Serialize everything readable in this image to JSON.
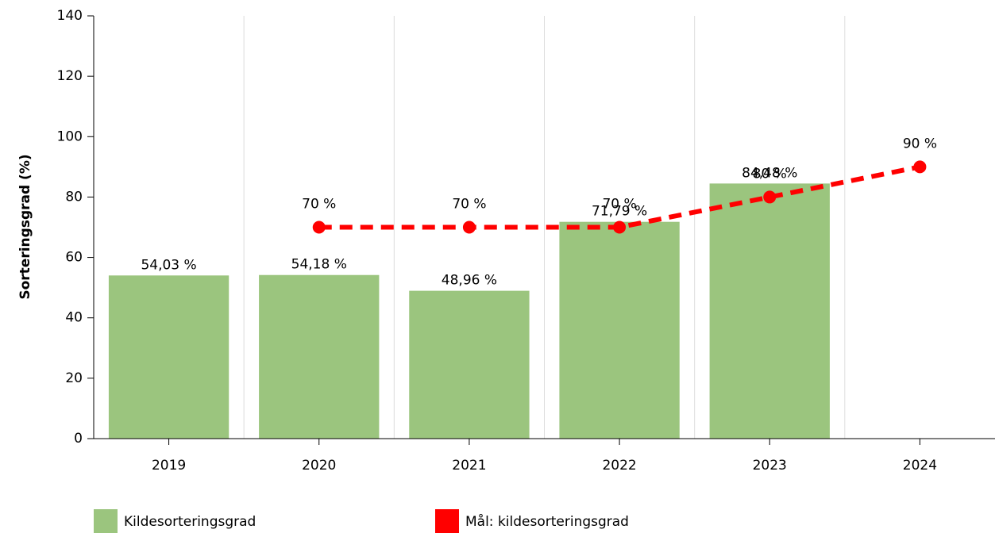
{
  "chart_data": {
    "type": "bar_line",
    "y_label": "Sorteringsgrad (%)",
    "categories": [
      "2019",
      "2020",
      "2021",
      "2022",
      "2023",
      "2024"
    ],
    "series": [
      {
        "name": "Kildesorteringsgrad",
        "type": "bar",
        "color": "#9bc57e",
        "values": [
          54.03,
          54.18,
          48.96,
          71.79,
          84.48,
          null
        ],
        "value_labels": [
          "54,03 %",
          "54,18 %",
          "48,96 %",
          "71,79 %",
          "84,48 %",
          null
        ]
      },
      {
        "name": "Mål: kildesorteringsgrad",
        "type": "line",
        "color": "#ff0000",
        "values": [
          null,
          70,
          70,
          70,
          80,
          90
        ],
        "value_labels": [
          null,
          "70 %",
          "70 %",
          "70 %",
          "80 %",
          "90 %"
        ]
      }
    ],
    "ylim": [
      0,
      140
    ],
    "yticks": [
      0,
      20,
      40,
      60,
      80,
      100,
      120,
      140
    ],
    "grid": "x",
    "legend": "bottom"
  }
}
